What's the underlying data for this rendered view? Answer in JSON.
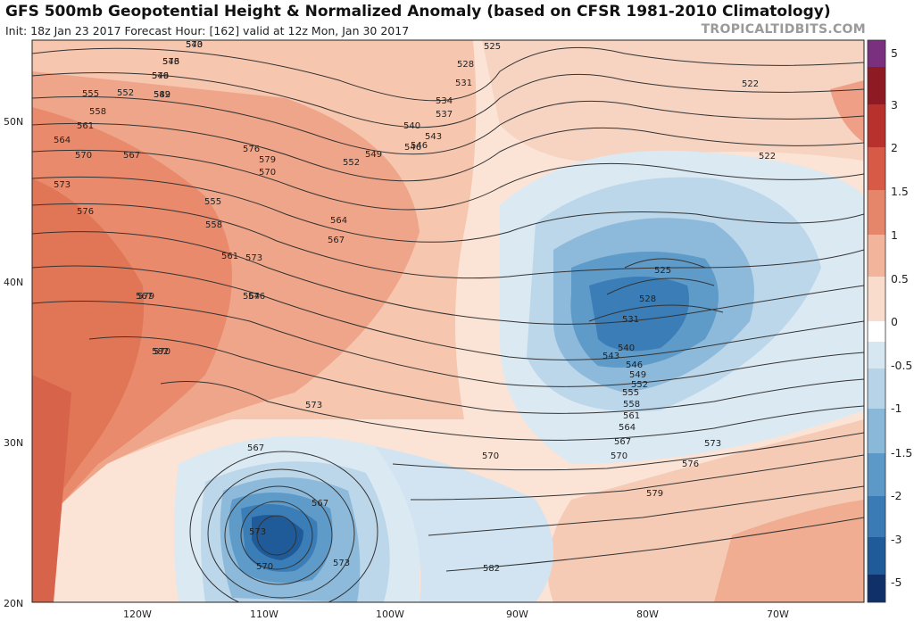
{
  "header": {
    "title": "GFS 500mb Geopotential Height & Normalized Anomaly (based on CFSR 1981-2010 Climatology)",
    "subtitle": "Init: 18z Jan 23 2017   Forecast Hour: [162]   valid at 12z Mon, Jan 30 2017",
    "brand": "TROPICALTIDBITS.COM"
  },
  "map": {
    "lat_labels": [
      "50N",
      "40N",
      "30N",
      "20N"
    ],
    "lon_labels": [
      "120W",
      "110W",
      "100W",
      "90W",
      "80W",
      "70W"
    ],
    "contour_labels": [
      "540",
      "543",
      "546",
      "549",
      "552",
      "555",
      "558",
      "561",
      "564",
      "567",
      "570",
      "573",
      "576",
      "579",
      "582",
      "525",
      "528",
      "531",
      "534",
      "537",
      "540",
      "543",
      "546",
      "522",
      "522",
      "552",
      "549",
      "546",
      "564",
      "567",
      "573",
      "576",
      "573",
      "570",
      "567",
      "525",
      "528",
      "531",
      "540",
      "543",
      "546",
      "549",
      "552",
      "555",
      "558",
      "561",
      "564",
      "567",
      "570",
      "573",
      "576",
      "579",
      "582",
      "573",
      "570",
      "567",
      "573",
      "576",
      "579",
      "570",
      "555",
      "558",
      "561",
      "564",
      "567",
      "570",
      "573",
      "576",
      "579",
      "582"
    ]
  },
  "colorbar": {
    "labels": [
      "5",
      "3",
      "2",
      "1.5",
      "1",
      "0.5",
      "0",
      "-0.5",
      "-1",
      "-1.5",
      "-2",
      "-3",
      "-5"
    ],
    "colors": {
      "pos_5": "#7b2f7f",
      "pos_3": "#8e1b23",
      "pos_2": "#b8312c",
      "pos_1_5": "#d65a45",
      "pos_1": "#e5866b",
      "pos_0_5": "#f2b59b",
      "pos_0": "#f9dccc",
      "zero": "#ffffff",
      "neg_0": "#d7e7f2",
      "neg_0_5": "#b6d3e8",
      "neg_1": "#89b8d9",
      "neg_1_5": "#5c99c8",
      "neg_2": "#3a7bb6",
      "neg_3": "#1f5a99",
      "neg_5": "#10306a"
    }
  }
}
